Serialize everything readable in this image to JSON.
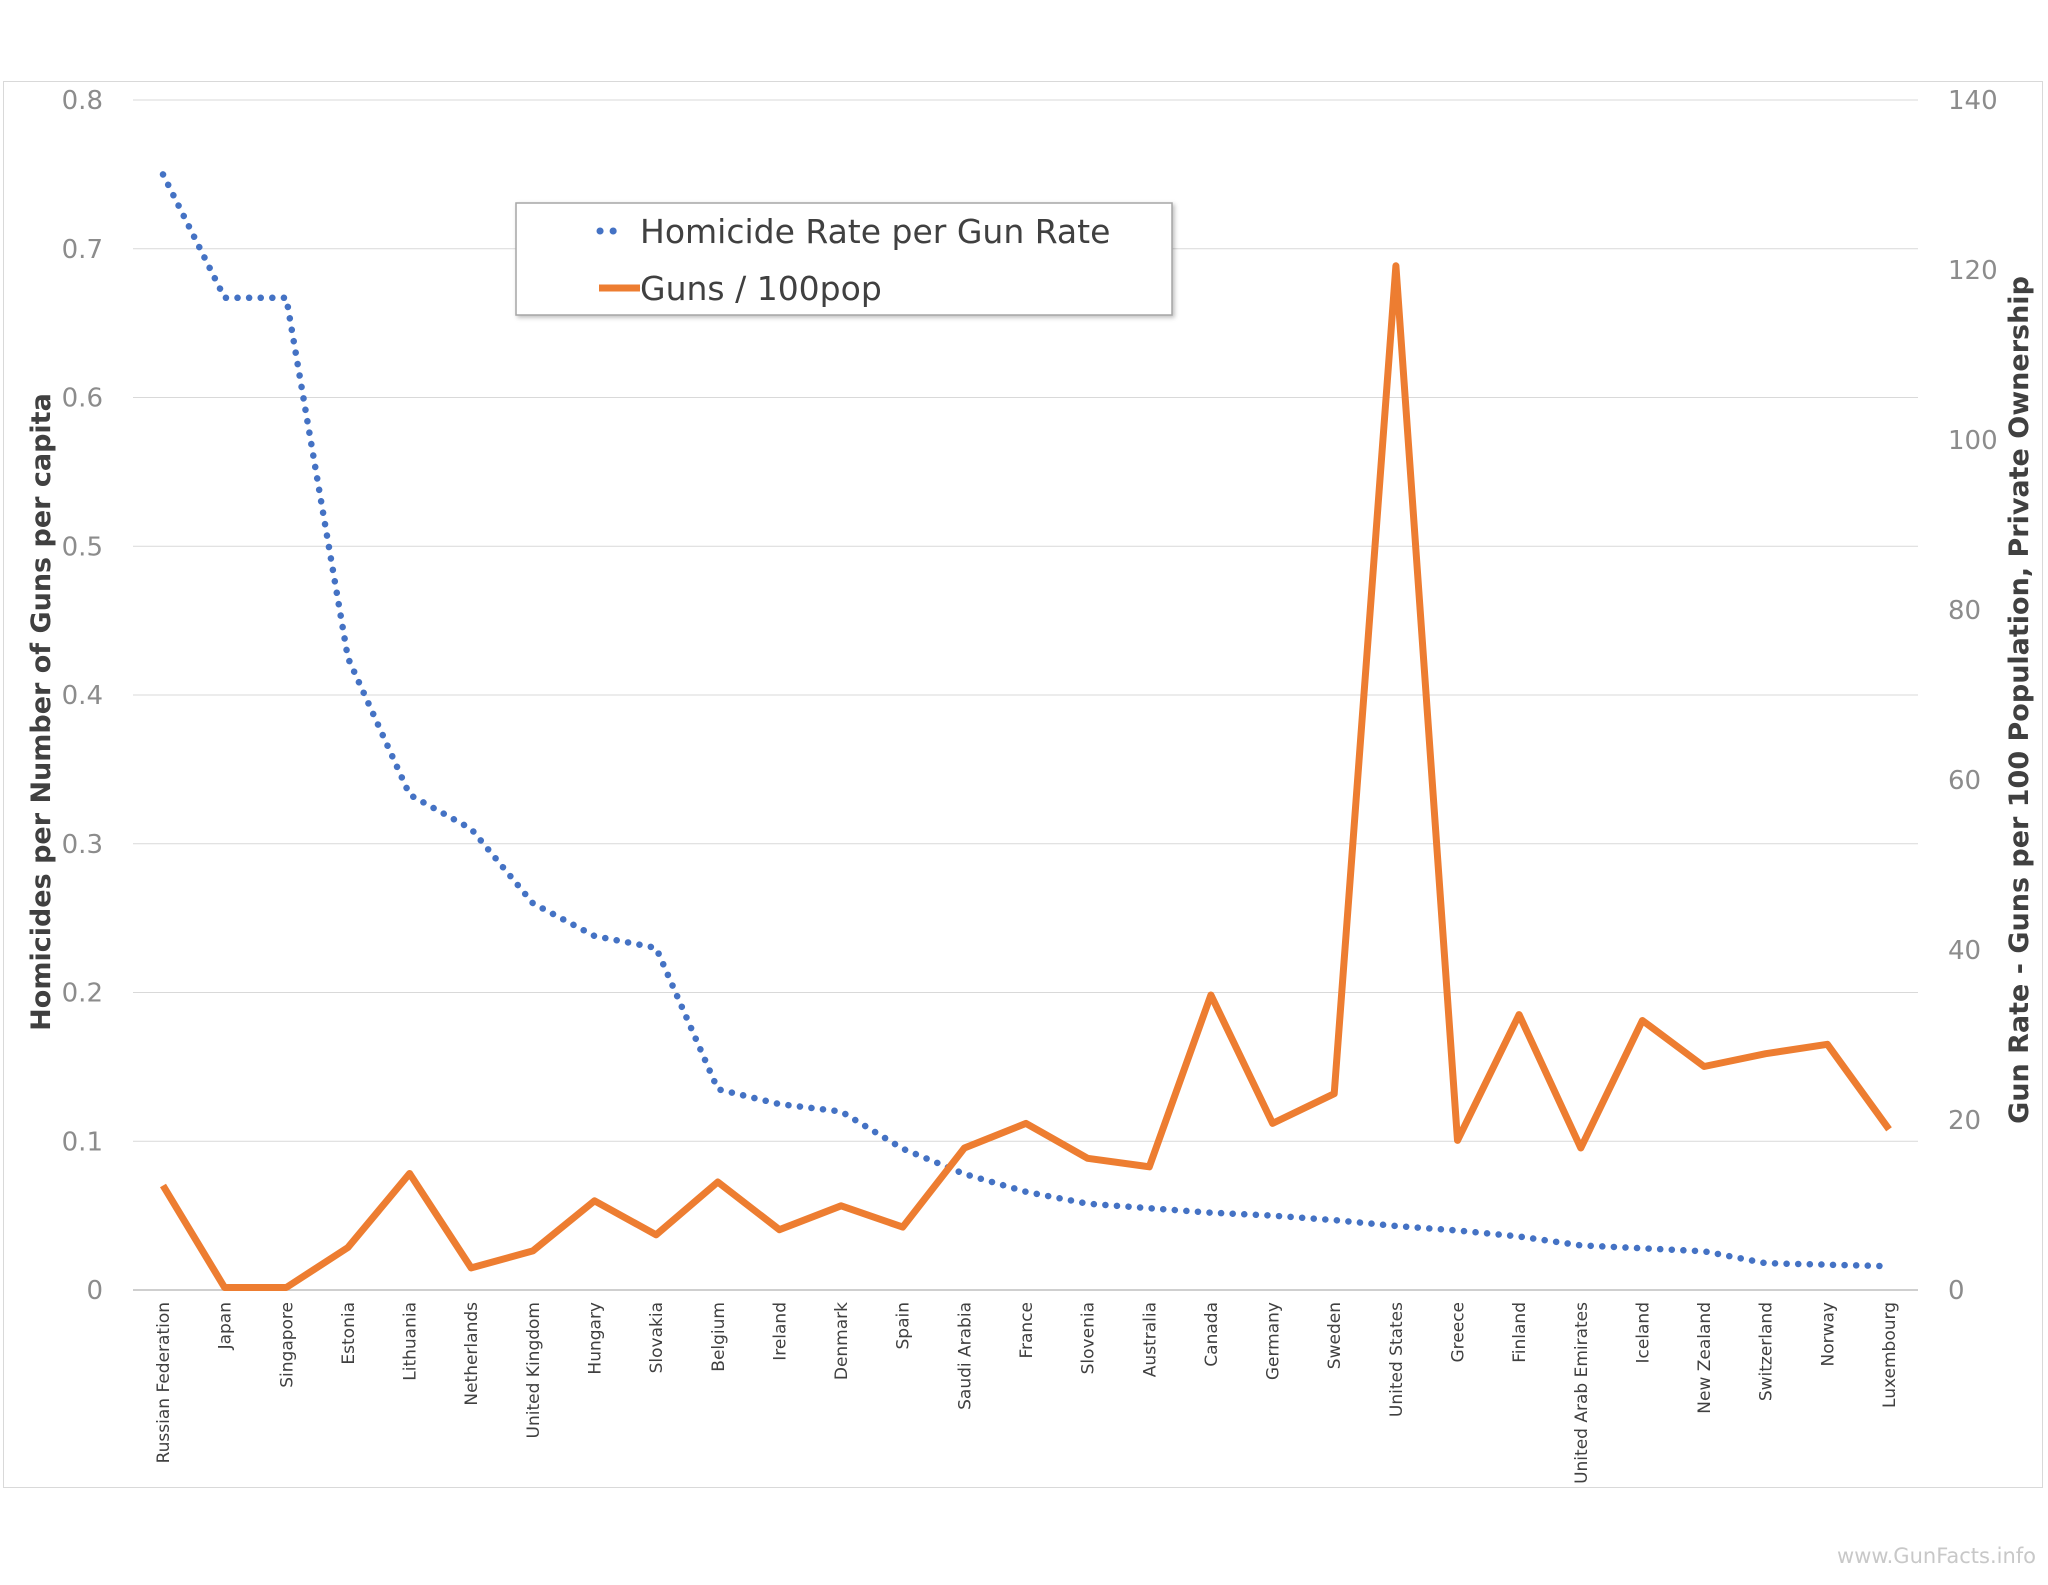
{
  "chart_data": {
    "type": "line",
    "categories": [
      "Russian Federation",
      "Japan",
      "Singapore",
      "Estonia",
      "Lithuania",
      "Netherlands",
      "United Kingdom",
      "Hungary",
      "Slovakia",
      "Belgium",
      "Ireland",
      "Denmark",
      "Spain",
      "Saudi Arabia",
      "France",
      "Slovenia",
      "Australia",
      "Canada",
      "Germany",
      "Sweden",
      "United States",
      "Greece",
      "Finland",
      "United Arab Emirates",
      "Iceland",
      "New Zealand",
      "Switzerland",
      "Norway",
      "Luxembourg"
    ],
    "series": [
      {
        "name": "Homicide Rate per Gun Rate",
        "axis": "left",
        "style": "dotted",
        "color": "#4472c4",
        "values": [
          0.75,
          0.667,
          0.667,
          0.425,
          0.333,
          0.31,
          0.26,
          0.238,
          0.23,
          0.135,
          0.125,
          0.12,
          0.095,
          0.078,
          0.066,
          0.058,
          0.055,
          0.052,
          0.05,
          0.047,
          0.043,
          0.04,
          0.036,
          0.03,
          0.028,
          0.026,
          0.018,
          0.017,
          0.016
        ]
      },
      {
        "name": "Guns / 100pop",
        "axis": "right",
        "style": "solid",
        "color": "#ed7d31",
        "values": [
          12.3,
          0.3,
          0.3,
          5,
          13.7,
          2.6,
          4.6,
          10.5,
          6.5,
          12.7,
          7.1,
          9.9,
          7.4,
          16.7,
          19.6,
          15.5,
          14.5,
          34.7,
          19.6,
          23.1,
          120.5,
          17.6,
          32.4,
          16.7,
          31.7,
          26.3,
          27.8,
          28.9,
          18.9
        ]
      }
    ],
    "y_left": {
      "label": "Homicides per Number of Guns per capita",
      "ticks": [
        "0",
        "0.1",
        "0.2",
        "0.3",
        "0.4",
        "0.5",
        "0.6",
        "0.7",
        "0.8"
      ],
      "range": [
        0,
        0.8
      ]
    },
    "y_right": {
      "label": "Gun Rate - Guns per 100 Population, Private Ownership",
      "ticks": [
        "0",
        "20",
        "40",
        "60",
        "80",
        "100",
        "120",
        "140"
      ],
      "range": [
        0,
        140
      ]
    },
    "grid": true,
    "legend_position": "top-center"
  },
  "watermark": "www.GunFacts.info"
}
